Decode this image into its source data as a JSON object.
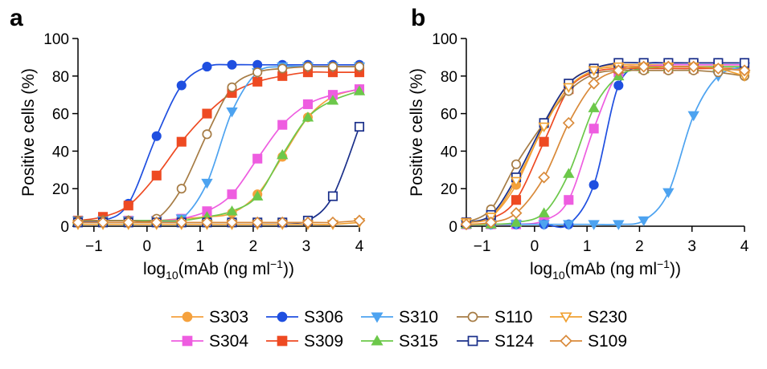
{
  "panels": [
    {
      "letter": "a"
    },
    {
      "letter": "b"
    }
  ],
  "chart_data": [
    {
      "type": "scatter",
      "panel": "a",
      "xlabel_parts": [
        "log",
        "10",
        "(mAb (ng ml",
        "−1",
        "))"
      ],
      "ylabel": "Positive cells (%)",
      "xlim": [
        -1.3,
        4
      ],
      "ylim": [
        0,
        100
      ],
      "xticks": [
        -1,
        0,
        1,
        2,
        3,
        4
      ],
      "xtick_labels": [
        "−1",
        "0",
        "1",
        "2",
        "3",
        "4"
      ],
      "yticks": [
        0,
        20,
        40,
        60,
        80,
        100
      ],
      "ytick_labels": [
        "0",
        "20",
        "40",
        "60",
        "80",
        "100"
      ],
      "x": [
        -1.3,
        -0.83,
        -0.35,
        0.18,
        0.65,
        1.13,
        1.6,
        2.08,
        2.55,
        3.03,
        3.5,
        4.0
      ],
      "series": [
        {
          "name": "S303",
          "values": [
            3,
            3,
            3,
            3,
            4,
            5,
            7,
            17,
            37,
            58,
            69,
            73
          ]
        },
        {
          "name": "S304",
          "values": [
            3,
            3,
            3,
            3,
            4,
            8,
            17,
            36,
            54,
            65,
            70,
            73
          ]
        },
        {
          "name": "S306",
          "values": [
            3,
            3,
            12,
            48,
            75,
            85,
            86,
            86,
            86,
            86,
            86,
            86
          ]
        },
        {
          "name": "S309",
          "values": [
            3,
            5,
            11,
            27,
            45,
            60,
            71,
            77,
            80,
            82,
            82,
            82
          ]
        },
        {
          "name": "S310",
          "values": [
            3,
            3,
            3,
            3,
            4,
            23,
            61,
            82,
            85,
            85,
            85,
            85
          ]
        },
        {
          "name": "S315",
          "values": [
            3,
            3,
            3,
            3,
            3,
            5,
            8,
            16,
            38,
            58,
            67,
            72
          ]
        },
        {
          "name": "S110",
          "values": [
            3,
            3,
            3,
            4,
            20,
            49,
            74,
            82,
            84,
            85,
            85,
            85
          ]
        },
        {
          "name": "S124",
          "values": [
            2,
            2,
            2,
            2,
            2,
            2,
            2,
            2,
            2,
            3,
            16,
            53
          ]
        },
        {
          "name": "S230",
          "values": [
            1,
            1,
            1,
            1,
            1,
            1,
            1,
            1,
            1,
            1,
            1,
            2
          ]
        },
        {
          "name": "S109",
          "values": [
            2,
            2,
            2,
            2,
            2,
            2,
            2,
            2,
            2,
            2,
            2,
            3
          ]
        }
      ]
    },
    {
      "type": "scatter",
      "panel": "b",
      "xlabel_parts": [
        "log",
        "10",
        "(mAb (ng ml",
        "−1",
        "))"
      ],
      "ylabel": "Positive cells (%)",
      "xlim": [
        -1.3,
        4
      ],
      "ylim": [
        0,
        100
      ],
      "xticks": [
        -1,
        0,
        1,
        2,
        3,
        4
      ],
      "xtick_labels": [
        "−1",
        "0",
        "1",
        "2",
        "3",
        "4"
      ],
      "yticks": [
        0,
        20,
        40,
        60,
        80,
        100
      ],
      "ytick_labels": [
        "0",
        "20",
        "40",
        "60",
        "80",
        "100"
      ],
      "x": [
        -1.3,
        -0.83,
        -0.35,
        0.18,
        0.65,
        1.13,
        1.6,
        2.08,
        2.55,
        3.03,
        3.5,
        4.0
      ],
      "series": [
        {
          "name": "S303",
          "values": [
            2,
            5,
            22,
            54,
            76,
            84,
            86,
            86,
            86,
            86,
            86,
            86
          ]
        },
        {
          "name": "S304",
          "values": [
            1,
            1,
            1,
            3,
            14,
            52,
            82,
            85,
            86,
            86,
            86,
            86
          ]
        },
        {
          "name": "S306",
          "values": [
            1,
            1,
            1,
            1,
            1,
            22,
            75,
            86,
            87,
            87,
            87,
            87
          ]
        },
        {
          "name": "S309",
          "values": [
            2,
            4,
            14,
            45,
            73,
            82,
            84,
            84,
            84,
            84,
            84,
            84
          ]
        },
        {
          "name": "S310",
          "values": [
            1,
            1,
            1,
            1,
            1,
            1,
            1,
            3,
            18,
            59,
            80,
            85
          ]
        },
        {
          "name": "S315",
          "values": [
            1,
            1,
            2,
            7,
            28,
            63,
            80,
            84,
            85,
            85,
            85,
            85
          ]
        },
        {
          "name": "S110",
          "values": [
            2,
            9,
            33,
            55,
            72,
            81,
            83,
            83,
            83,
            83,
            82,
            80
          ]
        },
        {
          "name": "S124",
          "values": [
            2,
            6,
            26,
            55,
            76,
            84,
            87,
            87,
            87,
            87,
            87,
            87
          ]
        },
        {
          "name": "S230",
          "values": [
            2,
            5,
            24,
            53,
            74,
            83,
            85,
            85,
            85,
            85,
            84,
            80
          ]
        },
        {
          "name": "S109",
          "values": [
            1,
            2,
            7,
            26,
            55,
            76,
            83,
            85,
            85,
            85,
            84,
            83
          ]
        }
      ]
    }
  ],
  "legend": {
    "placement": "bottom",
    "items": [
      {
        "name": "S303",
        "color": "#f5a13d",
        "marker": "circle",
        "fill": true
      },
      {
        "name": "S306",
        "color": "#1f4fe0",
        "marker": "circle",
        "fill": true
      },
      {
        "name": "S310",
        "color": "#4da3f0",
        "marker": "triangle-down",
        "fill": true
      },
      {
        "name": "S110",
        "color": "#a67c45",
        "marker": "circle",
        "fill": false
      },
      {
        "name": "S230",
        "color": "#f0a030",
        "marker": "triangle-down",
        "fill": false
      },
      {
        "name": "S304",
        "color": "#ee5de0",
        "marker": "square",
        "fill": true
      },
      {
        "name": "S309",
        "color": "#ee4a22",
        "marker": "square",
        "fill": true
      },
      {
        "name": "S315",
        "color": "#6cc84a",
        "marker": "triangle-up",
        "fill": true
      },
      {
        "name": "S124",
        "color": "#1a2f8a",
        "marker": "square",
        "fill": false
      },
      {
        "name": "S109",
        "color": "#d98a3a",
        "marker": "diamond",
        "fill": false
      }
    ]
  }
}
